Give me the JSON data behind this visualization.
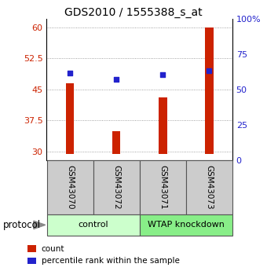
{
  "title": "GDS2010 / 1555388_s_at",
  "samples": [
    "GSM43070",
    "GSM43072",
    "GSM43071",
    "GSM43073"
  ],
  "bar_values": [
    46.5,
    35.0,
    43.0,
    60.0
  ],
  "scatter_values": [
    49.0,
    47.5,
    48.5,
    49.5
  ],
  "bar_color": "#cc2200",
  "scatter_color": "#2222cc",
  "ylim_left": [
    28,
    62
  ],
  "ylim_right": [
    0,
    100
  ],
  "yticks_left": [
    30,
    37.5,
    45,
    52.5,
    60
  ],
  "yticks_right": [
    0,
    25,
    50,
    75,
    100
  ],
  "ytick_labels_right": [
    "0",
    "25",
    "50",
    "75",
    "100%"
  ],
  "groups": [
    {
      "label": "control",
      "indices": [
        0,
        1
      ],
      "color": "#ccffcc"
    },
    {
      "label": "WTAP knockdown",
      "indices": [
        2,
        3
      ],
      "color": "#88ee88"
    }
  ],
  "protocol_label": "protocol",
  "legend_items": [
    {
      "label": "count",
      "color": "#cc2200"
    },
    {
      "label": "percentile rank within the sample",
      "color": "#2222cc"
    }
  ],
  "bar_width": 0.18,
  "bar_bottom": 29.5,
  "grid_color": "#888888",
  "title_fontsize": 10,
  "tick_fontsize": 8,
  "sample_label_fontsize": 7.5,
  "group_label_fontsize": 8,
  "sample_box_color": "#cccccc",
  "sample_box_edge": "#555555"
}
